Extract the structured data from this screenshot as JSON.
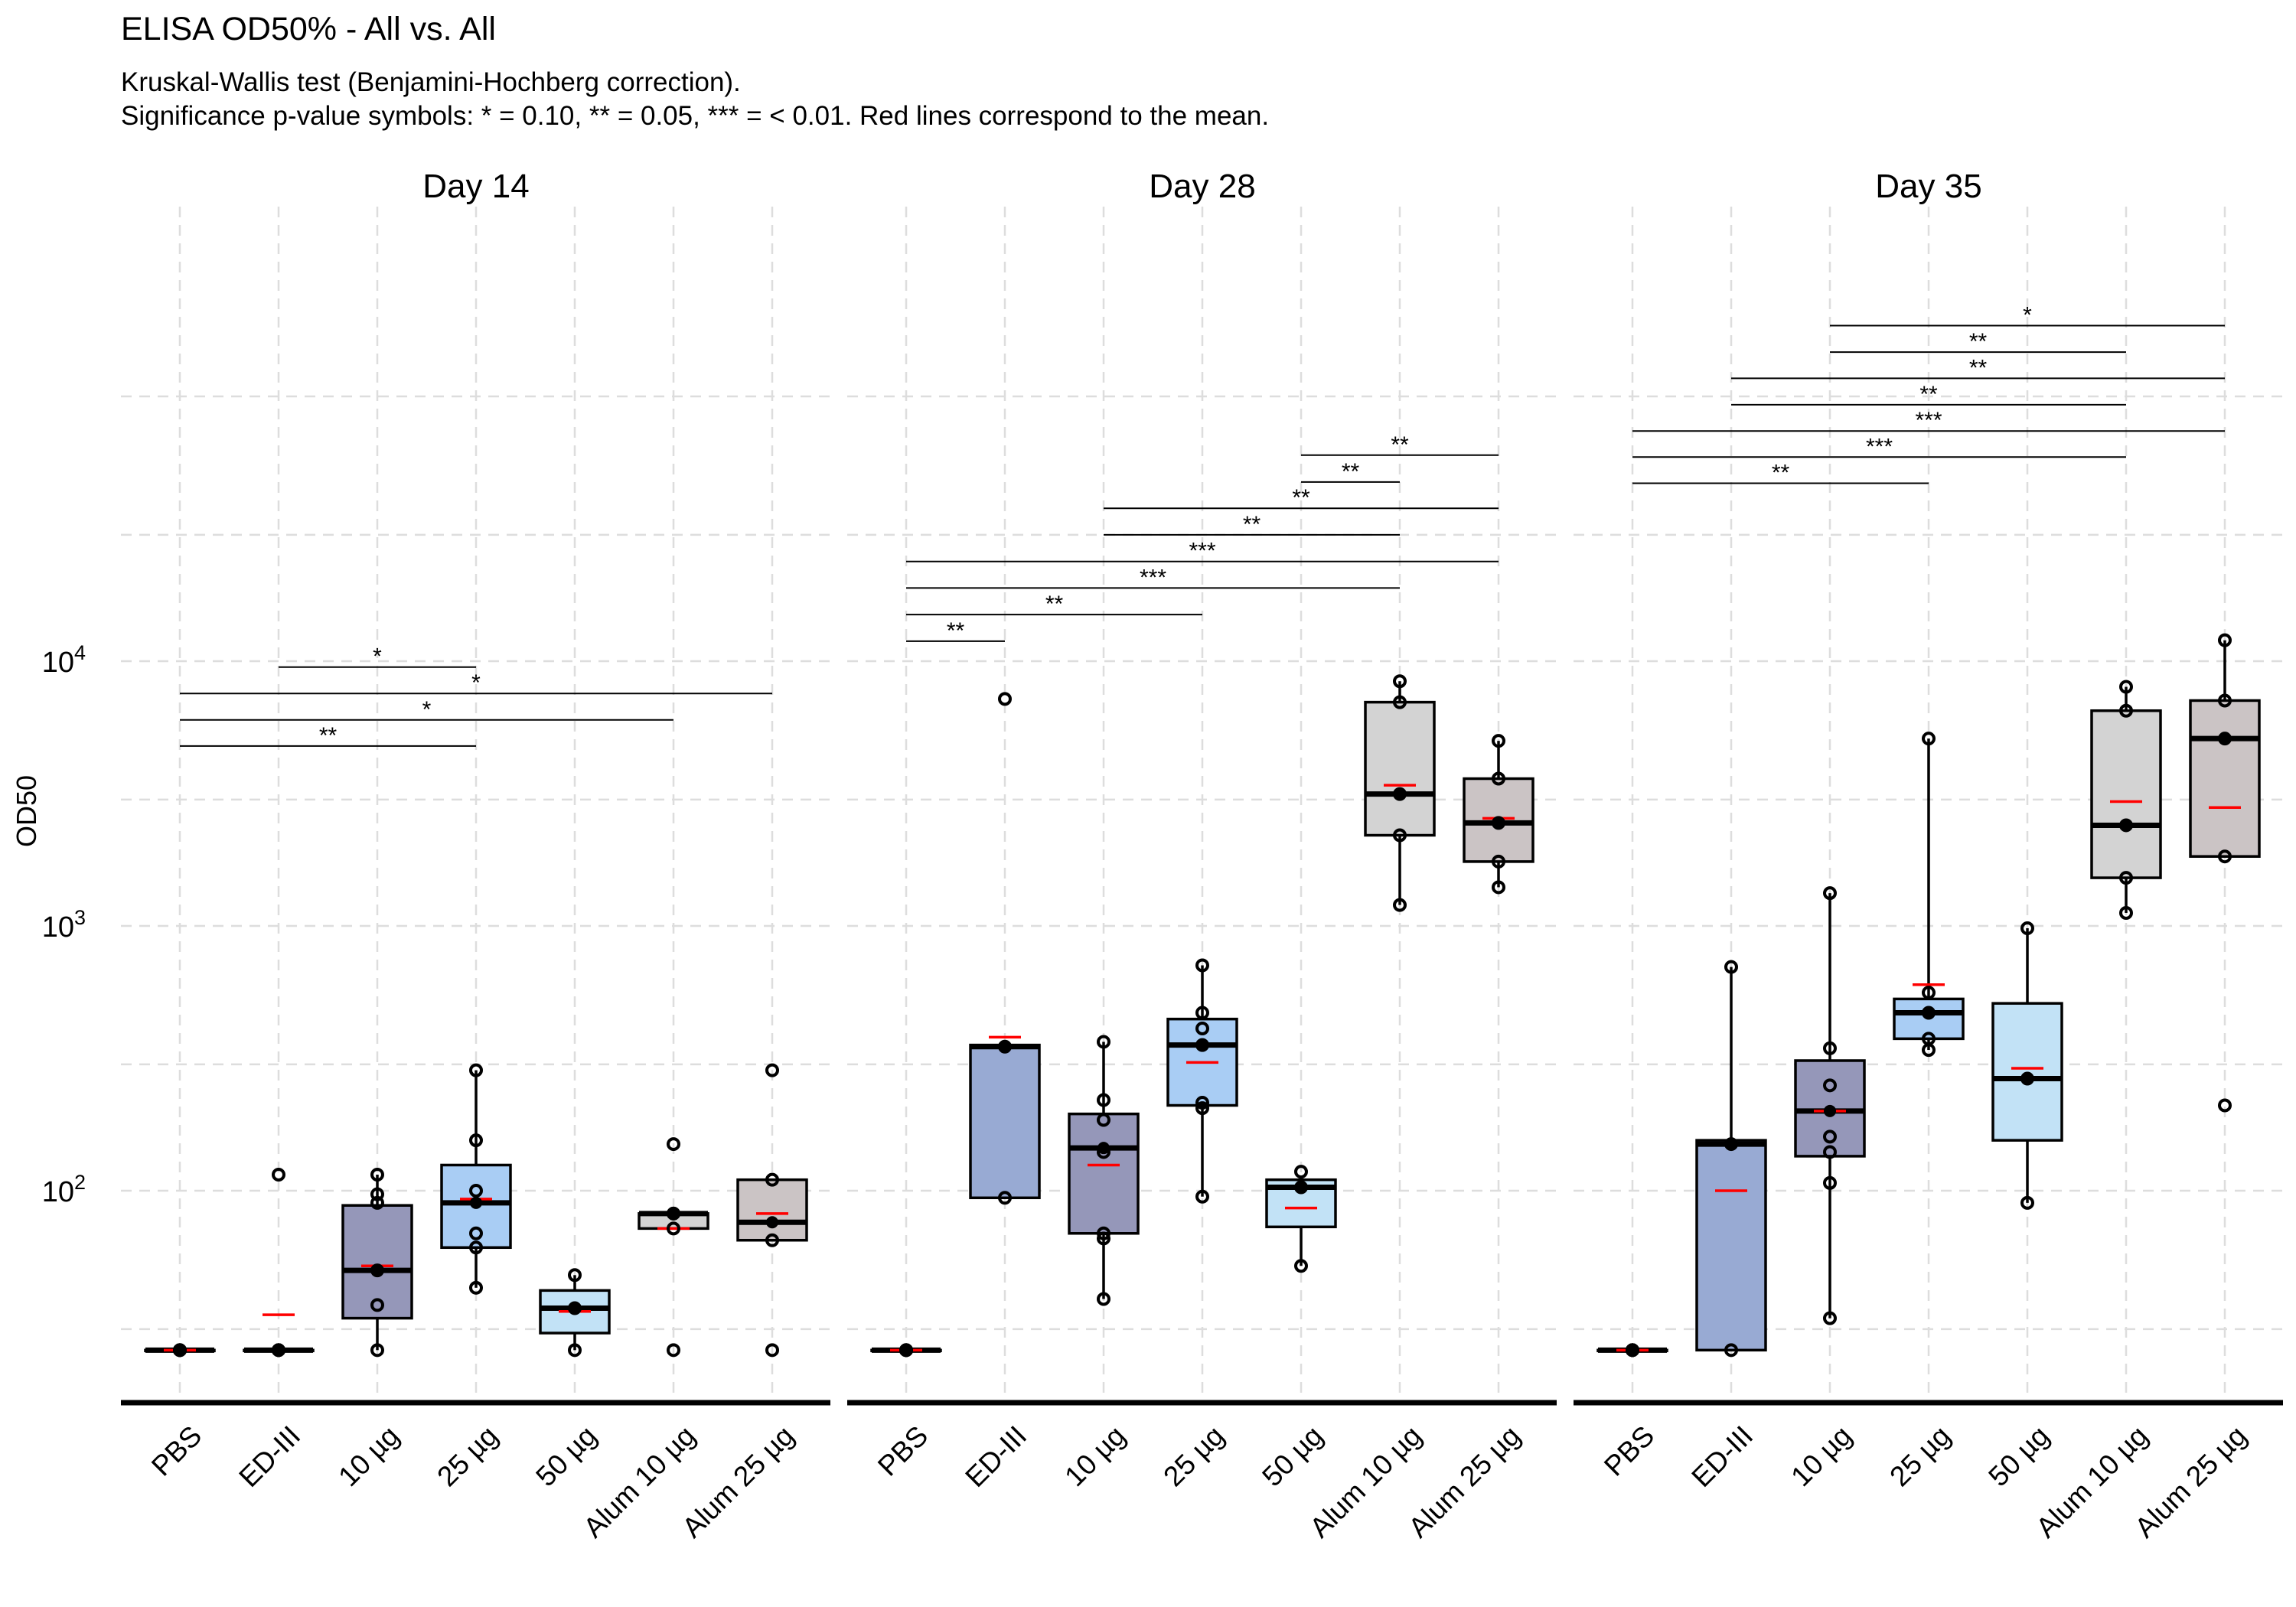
{
  "title": "ELISA OD50% - All vs. All",
  "subtitle_line1": "Kruskal-Wallis test (Benjamini-Hochberg correction).",
  "subtitle_line2": "Significance p-value symbols: * = 0.10, ** = 0.05, *** = < 0.01. Red lines correspond to the mean.",
  "colors": {
    "PBS": "#f2f2f2",
    "ED-III": "#98aad3",
    "10 µg": "#9597b9",
    "25 µg": "#a9cdf4",
    "50 µg": "#c2e2f6",
    "Alum 10 µg": "#d3d3d3",
    "Alum 25 µg": "#cbc4c5",
    "mean": "#ff0000",
    "grid": "#dddddd"
  },
  "chart_data": {
    "type": "box",
    "ylabel": "OD50",
    "yscale": "log10",
    "ylim": [
      15,
      200000
    ],
    "yticks": [
      {
        "value": 100,
        "label": "10^2"
      },
      {
        "value": 1000,
        "label": "10^3"
      },
      {
        "value": 10000,
        "label": "10^4"
      }
    ],
    "categories": [
      "PBS",
      "ED-III",
      "10 µg",
      "25 µg",
      "50 µg",
      "Alum 10 µg",
      "Alum 25 µg"
    ],
    "panels": [
      {
        "label": "Day  14",
        "groups": [
          {
            "cat": "PBS",
            "q1": 25,
            "median": 25,
            "q3": 25,
            "lo": 25,
            "hi": 25,
            "mean": 25,
            "points": [
              25,
              25,
              25,
              25,
              25
            ]
          },
          {
            "cat": "ED-III",
            "q1": 25,
            "median": 25,
            "q3": 25,
            "lo": 25,
            "hi": 25,
            "mean": 34,
            "points": [
              25,
              25,
              25,
              25,
              115
            ]
          },
          {
            "cat": "10 µg",
            "q1": 33,
            "median": 50,
            "q3": 88,
            "lo": 25,
            "hi": 115,
            "mean": 52,
            "points": [
              25,
              37,
              50,
              90,
              97,
              115
            ]
          },
          {
            "cat": "25 µg",
            "q1": 61,
            "median": 90,
            "q3": 125,
            "lo": 43,
            "hi": 285,
            "mean": 93,
            "points": [
              43,
              61,
              69,
              100,
              155,
              285
            ]
          },
          {
            "cat": "50 µg",
            "q1": 29,
            "median": 36,
            "q3": 42,
            "lo": 25,
            "hi": 48,
            "mean": 35,
            "points": [
              25,
              36,
              48
            ]
          },
          {
            "cat": "Alum 10 µg",
            "q1": 72,
            "median": 82,
            "q3": 82,
            "lo": 72,
            "hi": 82,
            "mean": 72,
            "points": [
              25,
              72,
              82,
              82,
              150
            ]
          },
          {
            "cat": "Alum 25 µg",
            "q1": 65,
            "median": 76,
            "q3": 110,
            "lo": 65,
            "hi": 110,
            "mean": 82,
            "points": [
              25,
              65,
              110,
              285
            ]
          }
        ],
        "brackets": [
          {
            "from": "ED-III",
            "to": "25 µg",
            "label": "*",
            "y": 9500
          },
          {
            "from": "PBS",
            "to": "Alum 25 µg",
            "label": "*",
            "y": 7550
          },
          {
            "from": "PBS",
            "to": "Alum 10 µg",
            "label": "*",
            "y": 6000
          },
          {
            "from": "PBS",
            "to": "25 µg",
            "label": "**",
            "y": 4780
          }
        ]
      },
      {
        "label": "Day  28",
        "groups": [
          {
            "cat": "PBS",
            "q1": 25,
            "median": 25,
            "q3": 25,
            "lo": 25,
            "hi": 25,
            "mean": 25,
            "points": [
              25,
              25,
              25,
              25,
              25
            ]
          },
          {
            "cat": "ED-III",
            "q1": 94,
            "median": 350,
            "q3": 355,
            "lo": 94,
            "hi": 355,
            "mean": 380,
            "points": [
              94,
              350,
              7200
            ]
          },
          {
            "cat": "10 µg",
            "q1": 69,
            "median": 145,
            "q3": 195,
            "lo": 39,
            "hi": 365,
            "mean": 125,
            "points": [
              39,
              66,
              69,
              140,
              185,
              220,
              365
            ]
          },
          {
            "cat": "25 µg",
            "q1": 210,
            "median": 355,
            "q3": 445,
            "lo": 95,
            "hi": 710,
            "mean": 305,
            "points": [
              95,
              205,
              215,
              355,
              410,
              470,
              710
            ]
          },
          {
            "cat": "50 µg",
            "q1": 73,
            "median": 103,
            "q3": 110,
            "lo": 52,
            "hi": 110,
            "mean": 86,
            "points": [
              52,
              103,
              118
            ]
          },
          {
            "cat": "Alum 10 µg",
            "q1": 2200,
            "median": 3150,
            "q3": 7000,
            "lo": 1200,
            "hi": 8400,
            "mean": 3400,
            "points": [
              1200,
              2200,
              3150,
              7000,
              8400
            ]
          },
          {
            "cat": "Alum 25 µg",
            "q1": 1750,
            "median": 2450,
            "q3": 3600,
            "lo": 1400,
            "hi": 5000,
            "mean": 2550,
            "points": [
              1400,
              1750,
              2450,
              3600,
              5000
            ]
          }
        ],
        "brackets": [
          {
            "from": "50 µg",
            "to": "Alum 25 µg",
            "label": "**",
            "y": 60000
          },
          {
            "from": "50 µg",
            "to": "Alum 10 µg",
            "label": "**",
            "y": 47500
          },
          {
            "from": "10 µg",
            "to": "Alum 25 µg",
            "label": "**",
            "y": 37800
          },
          {
            "from": "10 µg",
            "to": "Alum 10 µg",
            "label": "**",
            "y": 30000
          },
          {
            "from": "PBS",
            "to": "Alum 25 µg",
            "label": "***",
            "y": 23800
          },
          {
            "from": "PBS",
            "to": "Alum 10 µg",
            "label": "***",
            "y": 18900
          },
          {
            "from": "PBS",
            "to": "25 µg",
            "label": "**",
            "y": 15000
          },
          {
            "from": "PBS",
            "to": "ED-III",
            "label": "**",
            "y": 11900
          }
        ]
      },
      {
        "label": "Day  35",
        "groups": [
          {
            "cat": "PBS",
            "q1": 25,
            "median": 25,
            "q3": 25,
            "lo": 25,
            "hi": 25,
            "mean": 25,
            "points": [
              25,
              25,
              25,
              25,
              25
            ]
          },
          {
            "cat": "ED-III",
            "q1": 25,
            "median": 150,
            "q3": 155,
            "lo": 25,
            "hi": 700,
            "mean": 100,
            "points": [
              25,
              150,
              700
            ]
          },
          {
            "cat": "10 µg",
            "q1": 135,
            "median": 200,
            "q3": 310,
            "lo": 33,
            "hi": 1330,
            "mean": 200,
            "points": [
              33,
              107,
              140,
              160,
              250,
              345,
              1330
            ]
          },
          {
            "cat": "25 µg",
            "q1": 375,
            "median": 470,
            "q3": 530,
            "lo": 340,
            "hi": 5100,
            "mean": 600,
            "points": [
              340,
              375,
              470,
              560,
              5100
            ]
          },
          {
            "cat": "50 µg",
            "q1": 155,
            "median": 265,
            "q3": 510,
            "lo": 90,
            "hi": 980,
            "mean": 290,
            "points": [
              90,
              265,
              980
            ]
          },
          {
            "cat": "Alum 10 µg",
            "q1": 1520,
            "median": 2400,
            "q3": 6500,
            "lo": 1120,
            "hi": 8000,
            "mean": 2950,
            "points": [
              1120,
              1520,
              2400,
              6500,
              8000
            ]
          },
          {
            "cat": "Alum 25 µg",
            "q1": 1830,
            "median": 5100,
            "q3": 7100,
            "lo": 1830,
            "hi": 12000,
            "mean": 2800,
            "points": [
              210,
              1830,
              5100,
              7100,
              12000
            ]
          }
        ],
        "brackets": [
          {
            "from": "10 µg",
            "to": "Alum 25 µg",
            "label": "*",
            "y": 185000
          },
          {
            "from": "10 µg",
            "to": "Alum 10 µg",
            "label": "**",
            "y": 147000
          },
          {
            "from": "ED-III",
            "to": "Alum 25 µg",
            "label": "**",
            "y": 117000
          },
          {
            "from": "ED-III",
            "to": "Alum 10 µg",
            "label": "**",
            "y": 93000
          },
          {
            "from": "PBS",
            "to": "Alum 25 µg",
            "label": "***",
            "y": 74000
          },
          {
            "from": "PBS",
            "to": "Alum 10 µg",
            "label": "***",
            "y": 59000
          },
          {
            "from": "PBS",
            "to": "25 µg",
            "label": "**",
            "y": 47000
          }
        ]
      }
    ]
  }
}
